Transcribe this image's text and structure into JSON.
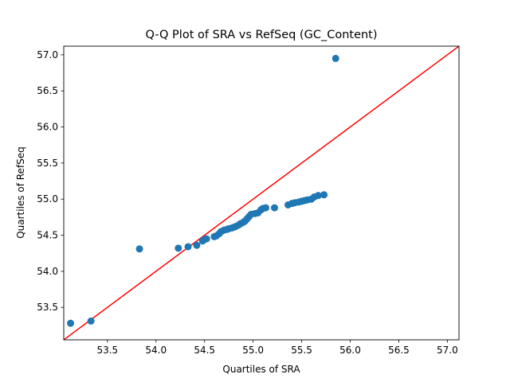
{
  "chart_data": {
    "type": "scatter",
    "title": "Q-Q Plot of SRA vs RefSeq (GC_Content)",
    "xlabel": "Quartiles of SRA",
    "ylabel": "Quartiles of RefSeq",
    "xlim": [
      53.05,
      57.12
    ],
    "ylim": [
      53.05,
      57.12
    ],
    "xticks": [
      53.5,
      54.0,
      54.5,
      55.0,
      55.5,
      56.0,
      56.5,
      57.0
    ],
    "xtick_labels": [
      "53.5",
      "54.0",
      "54.5",
      "55.0",
      "55.5",
      "56.0",
      "56.5",
      "57.0"
    ],
    "yticks": [
      53.5,
      54.0,
      54.5,
      55.0,
      55.5,
      56.0,
      56.5,
      57.0
    ],
    "ytick_labels": [
      "53.5",
      "54.0",
      "54.5",
      "55.0",
      "55.5",
      "56.0",
      "56.5",
      "57.0"
    ],
    "grid": false,
    "point_color": "#1f77b4",
    "line_color": "#ff0000",
    "reference_line": {
      "from": [
        53.05,
        53.05
      ],
      "to": [
        57.12,
        57.12
      ]
    },
    "points": [
      [
        53.12,
        53.28
      ],
      [
        53.33,
        53.31
      ],
      [
        53.83,
        54.31
      ],
      [
        54.23,
        54.32
      ],
      [
        54.33,
        54.34
      ],
      [
        54.42,
        54.36
      ],
      [
        54.48,
        54.42
      ],
      [
        54.5,
        54.44
      ],
      [
        54.52,
        54.45
      ],
      [
        54.6,
        54.48
      ],
      [
        54.62,
        54.49
      ],
      [
        54.65,
        54.52
      ],
      [
        54.67,
        54.55
      ],
      [
        54.7,
        54.57
      ],
      [
        54.73,
        54.58
      ],
      [
        54.75,
        54.59
      ],
      [
        54.78,
        54.6
      ],
      [
        54.8,
        54.61
      ],
      [
        54.82,
        54.62
      ],
      [
        54.85,
        54.64
      ],
      [
        54.87,
        54.66
      ],
      [
        54.9,
        54.68
      ],
      [
        54.92,
        54.7
      ],
      [
        54.94,
        54.73
      ],
      [
        54.96,
        54.76
      ],
      [
        54.98,
        54.79
      ],
      [
        55.02,
        54.8
      ],
      [
        55.05,
        54.81
      ],
      [
        55.08,
        54.85
      ],
      [
        55.1,
        54.87
      ],
      [
        55.13,
        54.88
      ],
      [
        55.22,
        54.88
      ],
      [
        55.36,
        54.92
      ],
      [
        55.4,
        54.94
      ],
      [
        55.43,
        54.95
      ],
      [
        55.47,
        54.96
      ],
      [
        55.5,
        54.97
      ],
      [
        55.53,
        54.98
      ],
      [
        55.56,
        54.99
      ],
      [
        55.6,
        55.0
      ],
      [
        55.63,
        55.03
      ],
      [
        55.67,
        55.05
      ],
      [
        55.73,
        55.06
      ],
      [
        55.85,
        56.95
      ]
    ]
  }
}
